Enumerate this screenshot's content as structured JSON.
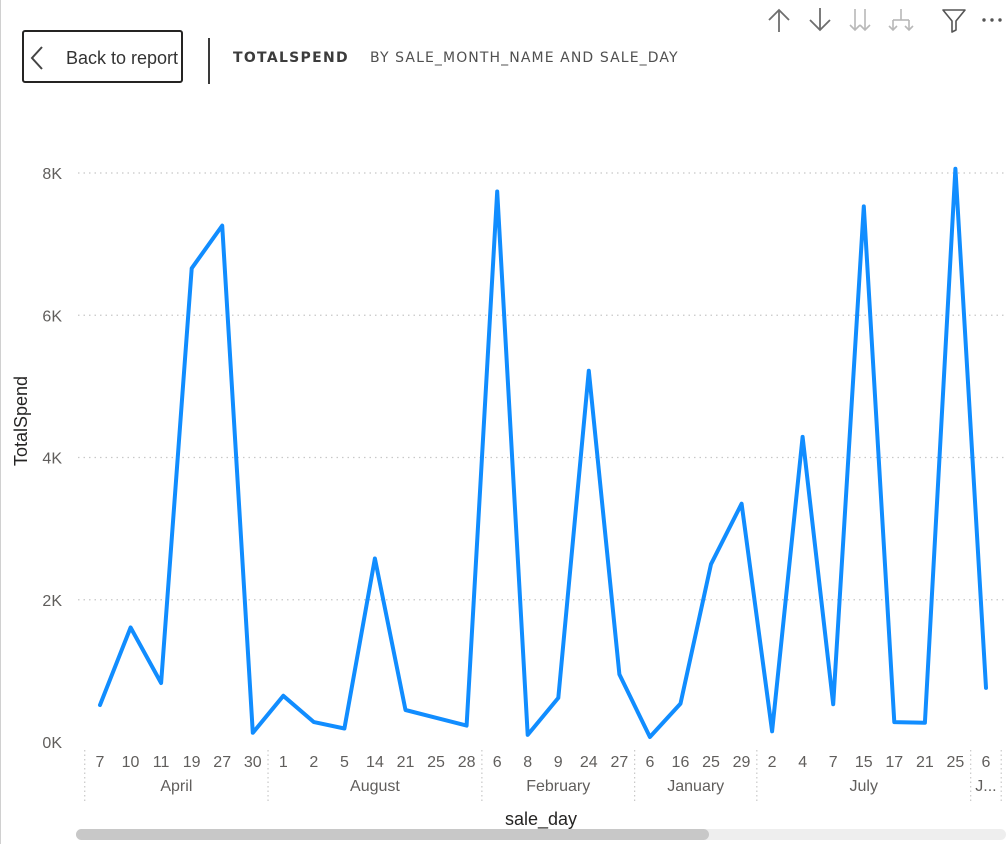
{
  "header": {
    "back_label": "Back to report",
    "title_measure": "TOTALSPEND",
    "title_rest": "BY SALE_MONTH_NAME AND SALE_DAY"
  },
  "toolbar": {
    "icons": [
      "sort-ascending-icon",
      "sort-descending-icon",
      "expand-all-icon",
      "expand-down-icon",
      "filter-icon",
      "more-options-icon"
    ]
  },
  "colors": {
    "line": "#118DFF",
    "grid": "#c8c8c8",
    "text": "#605e5c"
  },
  "chart_data": {
    "type": "line",
    "xlabel": "sale_day",
    "ylabel": "TotalSpend",
    "ylim": [
      0,
      8000
    ],
    "yticks": [
      "0K",
      "2K",
      "4K",
      "6K",
      "8K"
    ],
    "grid": true,
    "groups": [
      {
        "label": "April",
        "days": [
          "7",
          "10",
          "11",
          "19",
          "27",
          "30"
        ]
      },
      {
        "label": "August",
        "days": [
          "1",
          "2",
          "5",
          "14",
          "21",
          "25",
          "28"
        ]
      },
      {
        "label": "February",
        "days": [
          "6",
          "8",
          "9",
          "24",
          "27"
        ]
      },
      {
        "label": "January",
        "days": [
          "6",
          "16",
          "25",
          "29"
        ]
      },
      {
        "label": "July",
        "days": [
          "2",
          "4",
          "7",
          "15",
          "17",
          "21",
          "25"
        ]
      },
      {
        "label": "J...",
        "days": [
          "6"
        ]
      }
    ],
    "series": [
      {
        "values": [
          520,
          1610,
          830,
          6660,
          7260,
          130,
          650,
          280,
          190,
          2580,
          450,
          340,
          230,
          7740,
          100,
          620,
          5220,
          950,
          70,
          540,
          2500,
          3350,
          150,
          4290,
          530,
          7530,
          280,
          270,
          8060,
          760
        ]
      }
    ]
  }
}
